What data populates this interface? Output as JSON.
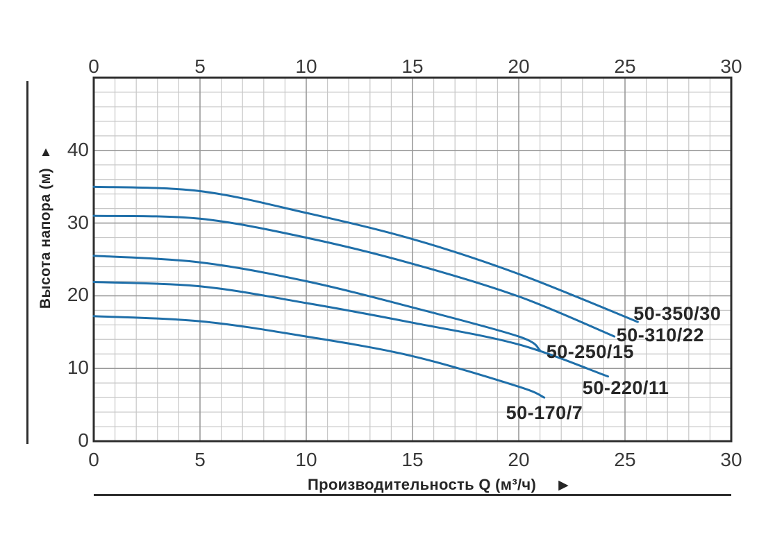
{
  "chart_data": {
    "type": "line",
    "title": "",
    "xlabel": "Производительность Q (м³/ч)",
    "ylabel": "Высота напора (м)",
    "xlim": [
      0,
      30
    ],
    "ylim": [
      0,
      50
    ],
    "x_major_ticks": [
      0,
      5,
      10,
      15,
      20,
      25,
      30
    ],
    "x_minor_step": 1,
    "y_major_ticks": [
      0,
      10,
      20,
      30,
      40
    ],
    "y_minor_step": 2,
    "grid": "on",
    "tick_label_rows": [
      "top",
      "bottom",
      "left"
    ],
    "legend_position": "labels-at-curve-ends",
    "series": [
      {
        "name": "50-350/30",
        "points": [
          [
            0,
            35
          ],
          [
            5,
            34.4
          ],
          [
            10,
            31.4
          ],
          [
            15,
            27.8
          ],
          [
            20,
            23
          ],
          [
            25.6,
            16.4
          ]
        ],
        "label_pos": {
          "q": 25.4,
          "h": 17.6
        }
      },
      {
        "name": "50-310/22",
        "points": [
          [
            0,
            31
          ],
          [
            5,
            30.6
          ],
          [
            10,
            28
          ],
          [
            15,
            24.4
          ],
          [
            20,
            19.9
          ],
          [
            24.5,
            14.4
          ]
        ],
        "label_pos": {
          "q": 24.6,
          "h": 14.6
        }
      },
      {
        "name": "50-250/15",
        "points": [
          [
            0,
            25.5
          ],
          [
            5,
            24.6
          ],
          [
            10,
            22
          ],
          [
            15,
            18.4
          ],
          [
            20,
            14.4
          ],
          [
            21,
            12.5
          ]
        ],
        "label_pos": {
          "q": 21.3,
          "h": 12.3
        }
      },
      {
        "name": "50-220/11",
        "points": [
          [
            0,
            21.9
          ],
          [
            5,
            21.3
          ],
          [
            10,
            19
          ],
          [
            15,
            16.3
          ],
          [
            20,
            13.3
          ],
          [
            24.2,
            8.9
          ]
        ],
        "label_pos": {
          "q": 23.0,
          "h": 7.3
        }
      },
      {
        "name": "50-170/7",
        "points": [
          [
            0,
            17.2
          ],
          [
            5,
            16.5
          ],
          [
            10,
            14.4
          ],
          [
            15,
            11.7
          ],
          [
            20,
            7.5
          ],
          [
            21.2,
            6
          ]
        ],
        "label_pos": {
          "q": 19.4,
          "h": 3.9
        }
      }
    ]
  },
  "decor": {
    "y_axis_arrow": "▲",
    "x_axis_arrow": "▶"
  },
  "colors": {
    "curve": "#1f6fa9",
    "grid_minor": "#c7c7c7",
    "grid_major": "#999999",
    "border": "#2e2e2e",
    "text": "#383838"
  }
}
